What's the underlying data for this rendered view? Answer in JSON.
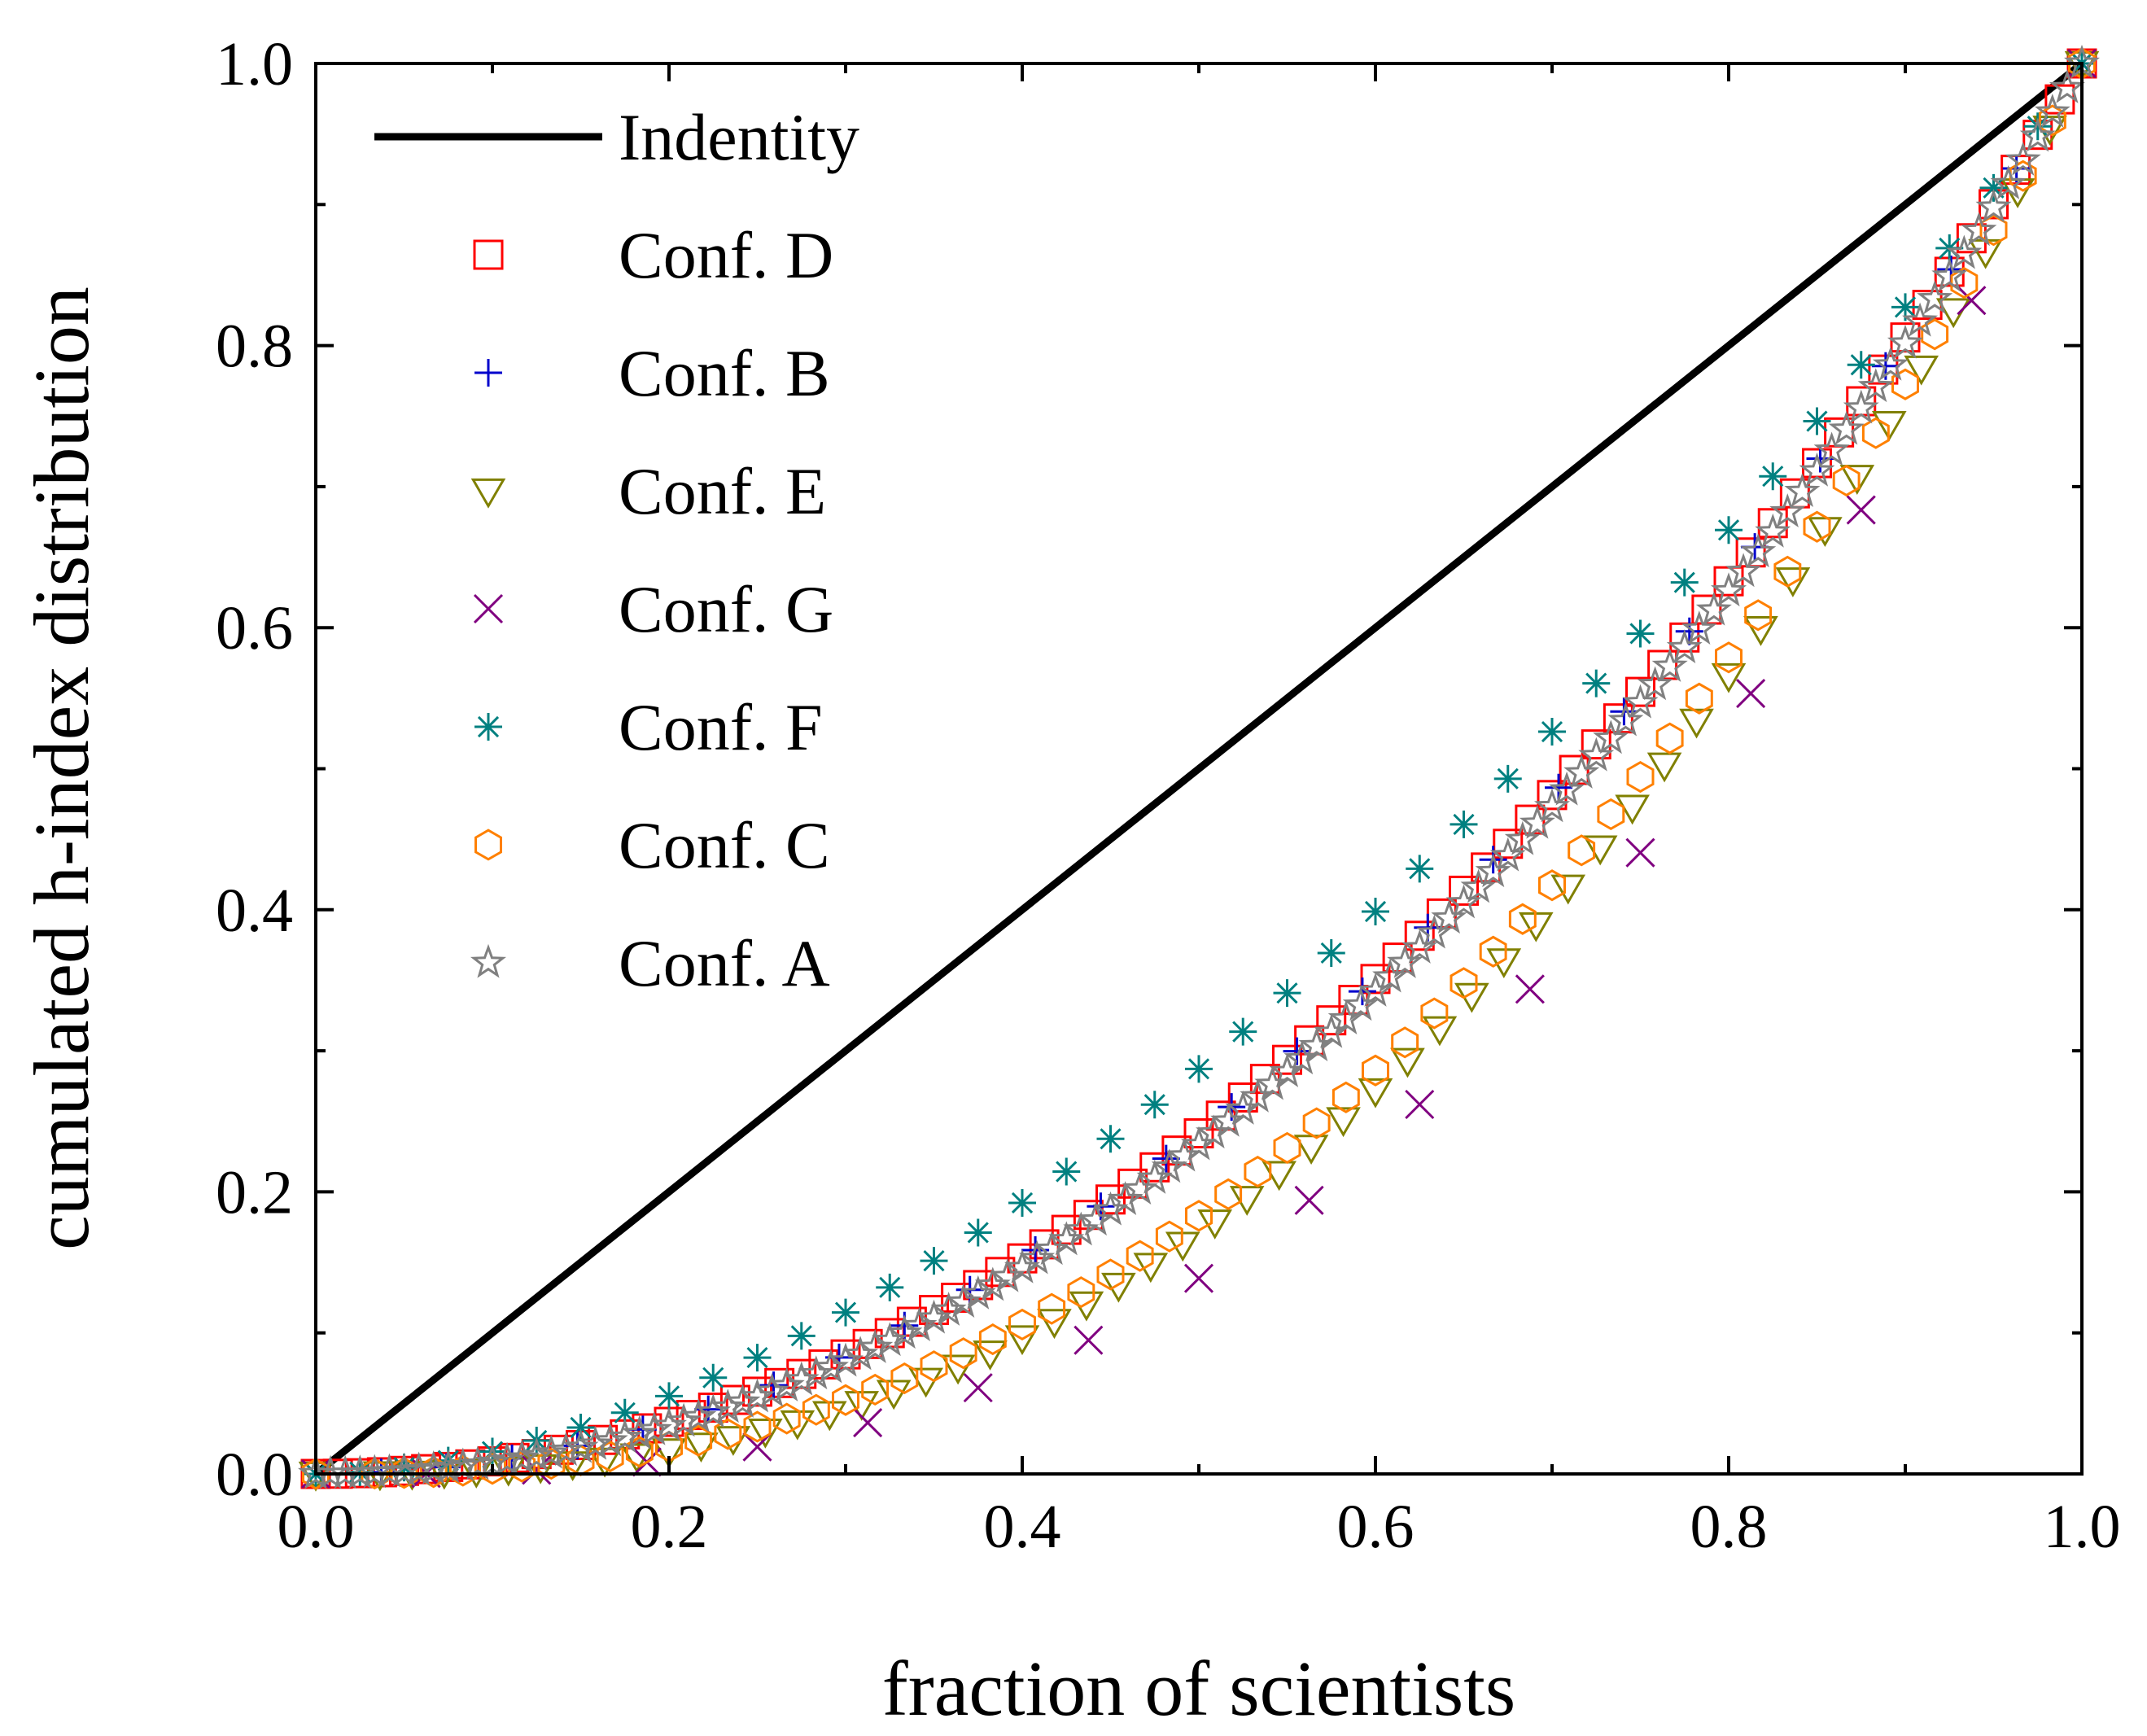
{
  "chart_data": {
    "type": "scatter",
    "title": "",
    "xlabel": "fraction of scientists",
    "ylabel": "cumulated h-index distribution",
    "xlim": [
      0.0,
      1.0
    ],
    "ylim": [
      0.0,
      1.0
    ],
    "xticks": [
      "0.0",
      "0.2",
      "0.4",
      "0.6",
      "0.8",
      "1.0"
    ],
    "yticks": [
      "0.0",
      "0.2",
      "0.4",
      "0.6",
      "0.8",
      "1.0"
    ],
    "legend_position": "top-left",
    "series": [
      {
        "name": "Indentity",
        "marker": "line",
        "color": "#000000",
        "n": 2,
        "k": 1.0,
        "xstart": 0.0
      },
      {
        "name": "Conf. D",
        "marker": "square",
        "color": "#ff0000",
        "n": 80,
        "k": 2.05,
        "xstart": 0.0125
      },
      {
        "name": "Conf. B",
        "marker": "plus",
        "color": "#0000cc",
        "n": 27,
        "k": 2.05,
        "xstart": 0.037
      },
      {
        "name": "Conf. E",
        "marker": "triangle-down",
        "color": "#808000",
        "n": 55,
        "k": 2.55,
        "xstart": 0.0182
      },
      {
        "name": "Conf. G",
        "marker": "x",
        "color": "#800080",
        "n": 16,
        "k": 2.85,
        "xstart": 0.0625
      },
      {
        "name": "Conf. F",
        "marker": "asterisk",
        "color": "#008080",
        "n": 40,
        "k": 1.8,
        "xstart": 0.025
      },
      {
        "name": "Conf. C",
        "marker": "hexagon",
        "color": "#ff8000",
        "n": 60,
        "k": 2.45,
        "xstart": 0.0167
      },
      {
        "name": "Conf. A",
        "marker": "star",
        "color": "#808080",
        "n": 120,
        "k": 2.1,
        "xstart": 0.0083
      }
    ]
  }
}
